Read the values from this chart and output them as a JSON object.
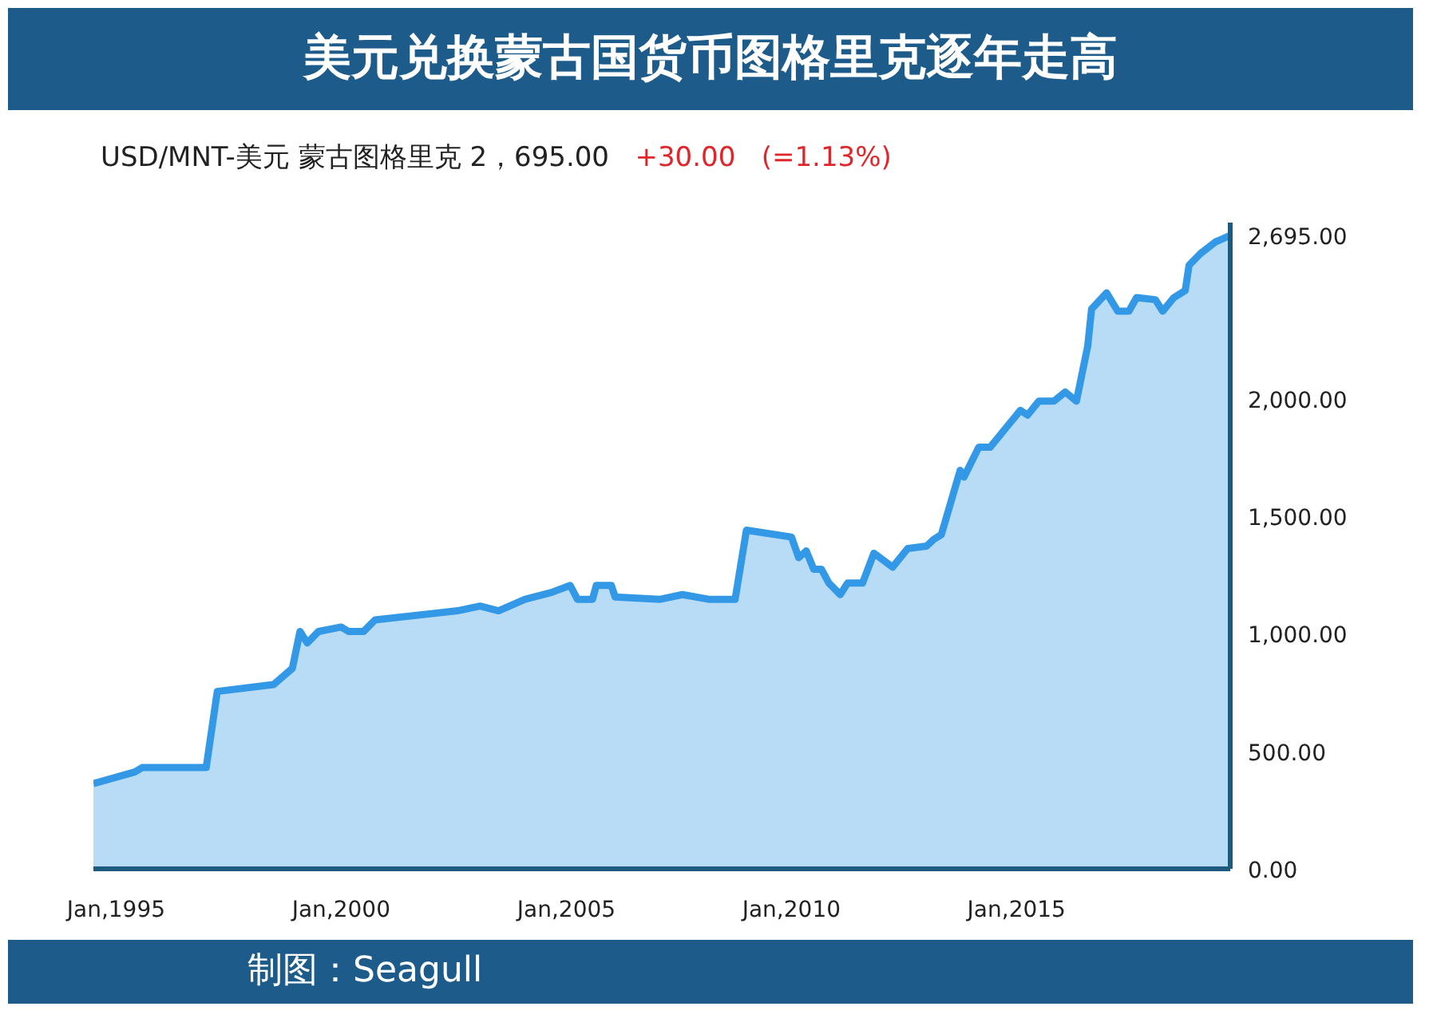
{
  "chart_data": {
    "type": "area",
    "title": "美元兑换蒙古国货币图格里克逐年走高",
    "subtitle": "USD/MNT-美元 蒙古图格里克  2，695.00",
    "x": [
      "1994-07",
      "1995-06",
      "1995-08",
      "1997-01",
      "1997-04",
      "1998-07",
      "1998-12",
      "1999-02",
      "1999-04",
      "1999-07",
      "2000-01",
      "2000-03",
      "2000-07",
      "2000-10",
      "2002-08",
      "2003-02",
      "2003-07",
      "2004-02",
      "2004-09",
      "2005-02",
      "2005-04",
      "2005-08",
      "2005-09",
      "2006-01",
      "2006-02",
      "2007-02",
      "2007-08",
      "2008-03",
      "2008-10",
      "2009-01",
      "2010-01",
      "2010-03",
      "2010-05",
      "2010-07",
      "2010-09",
      "2010-11",
      "2011-02",
      "2011-04",
      "2011-08",
      "2011-11",
      "2012-04",
      "2012-08",
      "2013-01",
      "2013-03",
      "2013-05",
      "2013-10",
      "2013-11",
      "2014-03",
      "2014-06",
      "2015-02",
      "2015-04",
      "2015-07",
      "2015-11",
      "2016-02",
      "2016-05",
      "2016-08",
      "2016-09",
      "2017-01",
      "2017-04",
      "2017-07",
      "2017-09",
      "2018-02",
      "2018-04",
      "2018-07",
      "2018-10",
      "2018-11",
      "2019-02",
      "2019-06",
      "2019-10"
    ],
    "series": [
      {
        "color": "#3399e6",
        "values": [
          363,
          412,
          431,
          431,
          755,
          784,
          853,
          1010,
          961,
          1010,
          1029,
          1010,
          1010,
          1059,
          1098,
          1118,
          1098,
          1147,
          1176,
          1206,
          1147,
          1147,
          1206,
          1206,
          1157,
          1147,
          1167,
          1147,
          1147,
          1441,
          1412,
          1324,
          1353,
          1275,
          1275,
          1216,
          1167,
          1216,
          1216,
          1343,
          1284,
          1363,
          1373,
          1402,
          1422,
          1696,
          1667,
          1794,
          1794,
          1951,
          1931,
          1990,
          1990,
          2029,
          1990,
          2225,
          2382,
          2451,
          2373,
          2373,
          2431,
          2422,
          2373,
          2431,
          2461,
          2569,
          2618,
          2667,
          2695
        ]
      }
    ],
    "xlim": [
      "1994-07",
      "2019-10"
    ],
    "ylim": [
      0,
      2750
    ],
    "xticks": [
      {
        "value": "1995-01",
        "label": "Jan,1995"
      },
      {
        "value": "2000-01",
        "label": "Jan,2000"
      },
      {
        "value": "2005-01",
        "label": "Jan,2005"
      },
      {
        "value": "2010-01",
        "label": "Jan,2010"
      },
      {
        "value": "2015-01",
        "label": "Jan,2015"
      }
    ],
    "yticks": [
      {
        "value": 0,
        "label": "0.00"
      },
      {
        "value": 500,
        "label": "500.00"
      },
      {
        "value": 1000,
        "label": "1,000.00"
      },
      {
        "value": 1500,
        "label": "1,500.00"
      },
      {
        "value": 2000,
        "label": "2,000.00"
      },
      {
        "value": 2695,
        "label": "2,695.00"
      }
    ],
    "annotations": [
      "+30.00",
      "(=1.13%)",
      "制图：Seagull"
    ],
    "grid": false
  }
}
